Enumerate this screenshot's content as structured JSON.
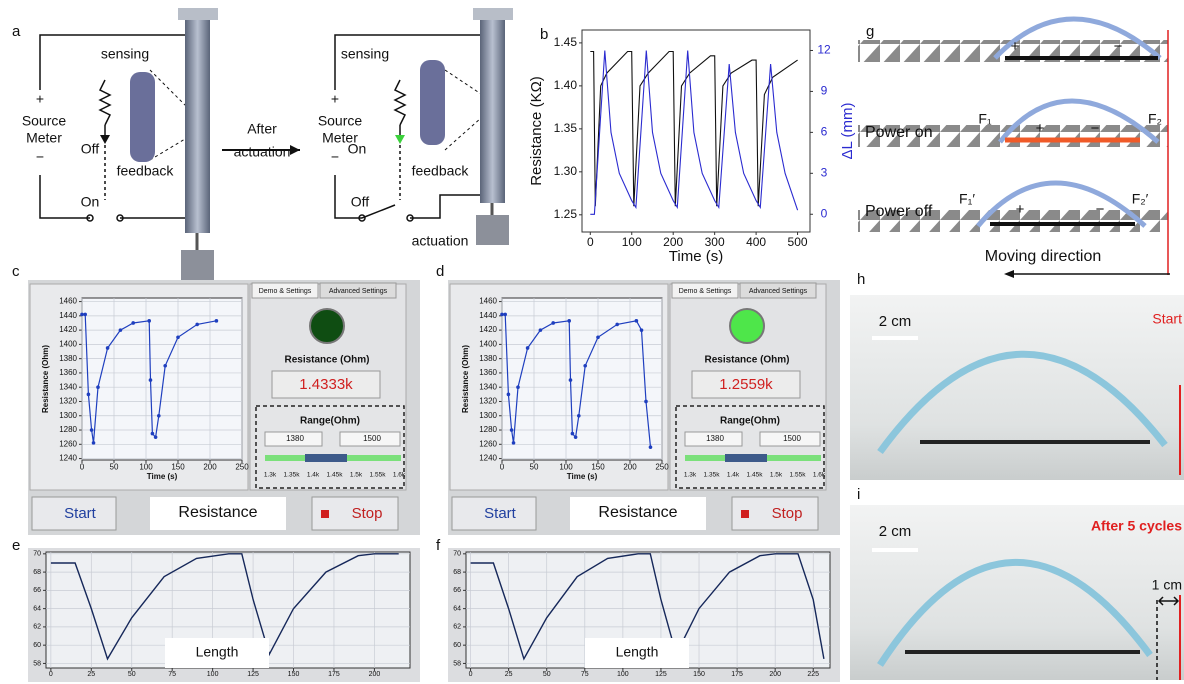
{
  "panel_labels": [
    "a",
    "b",
    "c",
    "d",
    "e",
    "f",
    "g",
    "h",
    "i"
  ],
  "panel_a": {
    "left": {
      "sensing": "sensing",
      "plus": "+",
      "source_meter": [
        "Source",
        "Meter"
      ],
      "minus": "−",
      "off": "Off",
      "feedback": "feedback",
      "on": "On"
    },
    "transition": [
      "After",
      "actuation"
    ],
    "right": {
      "sensing": "sensing",
      "plus": "+",
      "source_meter": [
        "Source",
        "Meter"
      ],
      "minus": "−",
      "on": "On",
      "feedback": "feedback",
      "off": "Off",
      "actuation": "actuation"
    }
  },
  "chart_data": [
    {
      "type": "line",
      "xlabel": "Time (s)",
      "ylabel": "Resistance (KΩ)",
      "y2label": "ΔL (mm)",
      "xlim": [
        -20,
        530
      ],
      "xticks": [
        0,
        100,
        200,
        300,
        400,
        500
      ],
      "ylim": [
        1.23,
        1.465
      ],
      "yticks": [
        1.25,
        {
          "value": 1.3,
          "label": "1.30"
        },
        1.35,
        {
          "value": 1.4,
          "label": "1.40"
        },
        1.45
      ],
      "y2lim": [
        -1.3,
        13.5
      ],
      "y2ticks": [
        0,
        3,
        6,
        9,
        12
      ],
      "y2color": "#2b2bd0",
      "series": [
        {
          "color": "#111111",
          "x": [
            0,
            8,
            12,
            25,
            40,
            90,
            100,
            105,
            120,
            140,
            190,
            200,
            205,
            220,
            240,
            290,
            300,
            305,
            320,
            340,
            390,
            400,
            405,
            420,
            440,
            500
          ],
          "values": [
            1.44,
            1.44,
            1.26,
            1.4,
            1.415,
            1.44,
            1.44,
            1.26,
            1.4,
            1.415,
            1.44,
            1.44,
            1.26,
            1.4,
            1.415,
            1.435,
            1.435,
            1.26,
            1.4,
            1.415,
            1.43,
            1.43,
            1.26,
            1.39,
            1.41,
            1.43
          ]
        },
        {
          "color": "#2b2bd0",
          "axis": "y2",
          "x": [
            0,
            10,
            35,
            50,
            70,
            100,
            110,
            135,
            150,
            170,
            200,
            210,
            235,
            250,
            270,
            300,
            310,
            335,
            350,
            370,
            400,
            410,
            435,
            450,
            470,
            500
          ],
          "values": [
            0,
            0,
            12,
            6,
            3,
            1,
            0.5,
            12,
            6,
            3,
            1,
            0.5,
            12,
            6,
            3,
            1,
            0.5,
            11,
            6,
            3,
            1,
            0.5,
            11,
            6,
            3,
            0.3
          ]
        }
      ]
    },
    {
      "type": "line",
      "xlabel": "Time (s)",
      "ylabel": "Resistance (Ohm)",
      "grid": true,
      "xlim": [
        0,
        250
      ],
      "xticks": [
        0,
        50,
        100,
        150,
        200,
        250
      ],
      "ylim": [
        1238,
        1465
      ],
      "yticks": [
        1240,
        1260,
        1280,
        1300,
        1320,
        1340,
        1360,
        1380,
        1400,
        1420,
        1440,
        1460
      ],
      "series": [
        {
          "color": "#1f3fbf",
          "x": [
            0,
            5,
            10,
            15,
            18,
            25,
            40,
            60,
            80,
            105,
            107,
            110,
            115,
            120,
            130,
            150,
            180,
            210
          ],
          "values": [
            1442,
            1442,
            1330,
            1280,
            1262,
            1340,
            1395,
            1420,
            1430,
            1433,
            1350,
            1275,
            1270,
            1300,
            1370,
            1410,
            1428,
            1433
          ]
        }
      ]
    },
    {
      "type": "line",
      "xlabel": "Time (s)",
      "ylabel": "Resistance (Ohm)",
      "grid": true,
      "xlim": [
        0,
        250
      ],
      "xticks": [
        0,
        50,
        100,
        150,
        200,
        250
      ],
      "ylim": [
        1238,
        1465
      ],
      "yticks": [
        1240,
        1260,
        1280,
        1300,
        1320,
        1340,
        1360,
        1380,
        1400,
        1420,
        1440,
        1460
      ],
      "series": [
        {
          "color": "#1f3fbf",
          "x": [
            0,
            5,
            10,
            15,
            18,
            25,
            40,
            60,
            80,
            105,
            107,
            110,
            115,
            120,
            130,
            150,
            180,
            210,
            218,
            225,
            232
          ],
          "values": [
            1442,
            1442,
            1330,
            1280,
            1262,
            1340,
            1395,
            1420,
            1430,
            1433,
            1350,
            1275,
            1270,
            1300,
            1370,
            1410,
            1428,
            1433,
            1420,
            1320,
            1256
          ]
        }
      ]
    },
    {
      "type": "line",
      "grid": true,
      "xlim": [
        -3,
        222
      ],
      "xticks": [
        0,
        25,
        50,
        75,
        100,
        125,
        150,
        175,
        200
      ],
      "ylim": [
        57.5,
        70.2
      ],
      "yticks": [
        58,
        60,
        62,
        64,
        66,
        68,
        70
      ],
      "series": [
        {
          "color": "#16285a",
          "x": [
            0,
            15,
            25,
            35,
            50,
            70,
            90,
            110,
            118,
            125,
            135,
            150,
            170,
            190,
            200,
            215
          ],
          "values": [
            69,
            69,
            64,
            58.5,
            63,
            67.5,
            69.5,
            70,
            70,
            65,
            59,
            64,
            68,
            69.8,
            70,
            70
          ]
        }
      ]
    },
    {
      "type": "line",
      "grid": true,
      "xlim": [
        -3,
        236
      ],
      "xticks": [
        0,
        25,
        50,
        75,
        100,
        125,
        150,
        175,
        200,
        225
      ],
      "ylim": [
        57.5,
        70.2
      ],
      "yticks": [
        58,
        60,
        62,
        64,
        66,
        68,
        70
      ],
      "series": [
        {
          "color": "#16285a",
          "x": [
            0,
            15,
            25,
            35,
            50,
            70,
            90,
            110,
            118,
            125,
            135,
            150,
            170,
            190,
            200,
            215,
            225,
            232
          ],
          "values": [
            69,
            69,
            64,
            58.5,
            63,
            67.5,
            69.5,
            70,
            70,
            65,
            59,
            64,
            68,
            69.8,
            70,
            70,
            65,
            58.5
          ]
        }
      ]
    }
  ],
  "panels": {
    "c": {
      "tabs": [
        "Demo & Settings",
        "Advanced Settings"
      ],
      "indicator_color": "#0f4d12",
      "readout_title": "Resistance (Ohm)",
      "readout": "1.4333k",
      "range_title": "Range(Ohm)",
      "range_low": "1380",
      "range_high": "1500",
      "scale": [
        "1.3k",
        "1.35k",
        "1.4k",
        "1.45k",
        "1.5k",
        "1.55k",
        "1.6k"
      ],
      "start": "Start",
      "mode": "Resistance",
      "stop": "Stop"
    },
    "d": {
      "tabs": [
        "Demo & Settings",
        "Advanced Settings"
      ],
      "indicator_color": "#4ee64a",
      "readout_title": "Resistance (Ohm)",
      "readout": "1.2559k",
      "range_title": "Range(Ohm)",
      "range_low": "1380",
      "range_high": "1500",
      "scale": [
        "1.3k",
        "1.35k",
        "1.4k",
        "1.45k",
        "1.5k",
        "1.55k",
        "1.6k"
      ],
      "start": "Start",
      "mode": "Resistance",
      "stop": "Stop"
    },
    "e": {
      "mode": "Length"
    },
    "f": {
      "mode": "Length"
    }
  },
  "panel_g": {
    "top": {
      "plus": "+",
      "minus": "−"
    },
    "power_on": {
      "label": "Power on",
      "f_left": "F₁",
      "f_right": "F₂",
      "plus": "+",
      "minus": "−"
    },
    "power_off": {
      "label": "Power off",
      "f_left": "F₁′",
      "f_right": "F₂′",
      "plus": "+",
      "minus": "−"
    },
    "direction": "Moving direction"
  },
  "panel_h": {
    "scale": "2 cm",
    "caption": "Start"
  },
  "panel_i": {
    "scale": "2 cm",
    "caption": "After 5 cycles",
    "shift": "1 cm"
  }
}
